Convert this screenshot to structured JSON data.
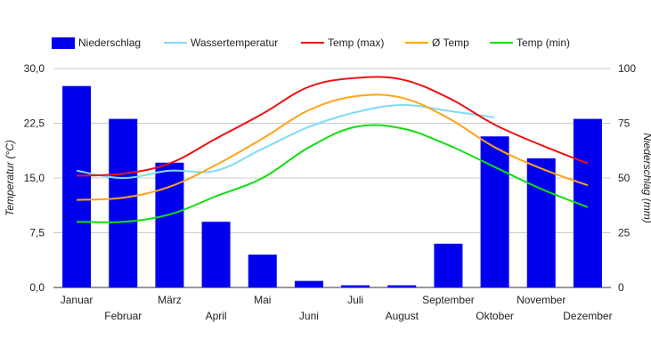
{
  "chart_data": {
    "type": "bar+line",
    "categories": [
      "Januar",
      "Februar",
      "März",
      "April",
      "Mai",
      "Juni",
      "Juli",
      "August",
      "September",
      "Oktober",
      "November",
      "Dezember"
    ],
    "bars": {
      "name": "Niederschlag",
      "axis": "right",
      "color": "#0000ee",
      "values": [
        92,
        77,
        57,
        30,
        15,
        3,
        1,
        1,
        20,
        69,
        59,
        77
      ]
    },
    "series": [
      {
        "name": "Wassertemperatur",
        "axis": "left",
        "color": "#7fdcf5",
        "values": [
          16.0,
          15.0,
          16.0,
          16.0,
          19.0,
          22.0,
          24.0,
          25.0,
          24.2,
          23.3,
          null,
          null
        ]
      },
      {
        "name": "Temp (max)",
        "axis": "left",
        "color": "#ee1111",
        "values": [
          15.3,
          15.6,
          17.0,
          20.4,
          23.8,
          27.5,
          28.7,
          28.5,
          26.0,
          22.3,
          19.5,
          17.0
        ]
      },
      {
        "name": "Ø Temp",
        "axis": "left",
        "color": "#ffa31a",
        "values": [
          12.0,
          12.3,
          13.8,
          16.8,
          20.4,
          24.3,
          26.2,
          26.0,
          23.2,
          19.2,
          16.3,
          14.0
        ]
      },
      {
        "name": "Temp (min)",
        "axis": "left",
        "color": "#11dd11",
        "values": [
          9.0,
          9.0,
          10.0,
          12.5,
          15.0,
          19.2,
          22.0,
          21.8,
          19.5,
          16.5,
          13.5,
          11.0
        ]
      }
    ],
    "legend_order": [
      "Niederschlag",
      "Wassertemperatur",
      "Temp (max)",
      "Ø Temp",
      "Temp (min)"
    ],
    "legend_position": "top",
    "y_left": {
      "label": "Temperatur (°C)",
      "min": 0,
      "max": 30,
      "ticks": [
        "0,0",
        "7,5",
        "15,0",
        "22,5",
        "30,0"
      ]
    },
    "y_right": {
      "label": "Niederschlag (mm)",
      "min": 0,
      "max": 100,
      "ticks": [
        "0",
        "25",
        "50",
        "75",
        "100"
      ]
    },
    "grid": true
  }
}
